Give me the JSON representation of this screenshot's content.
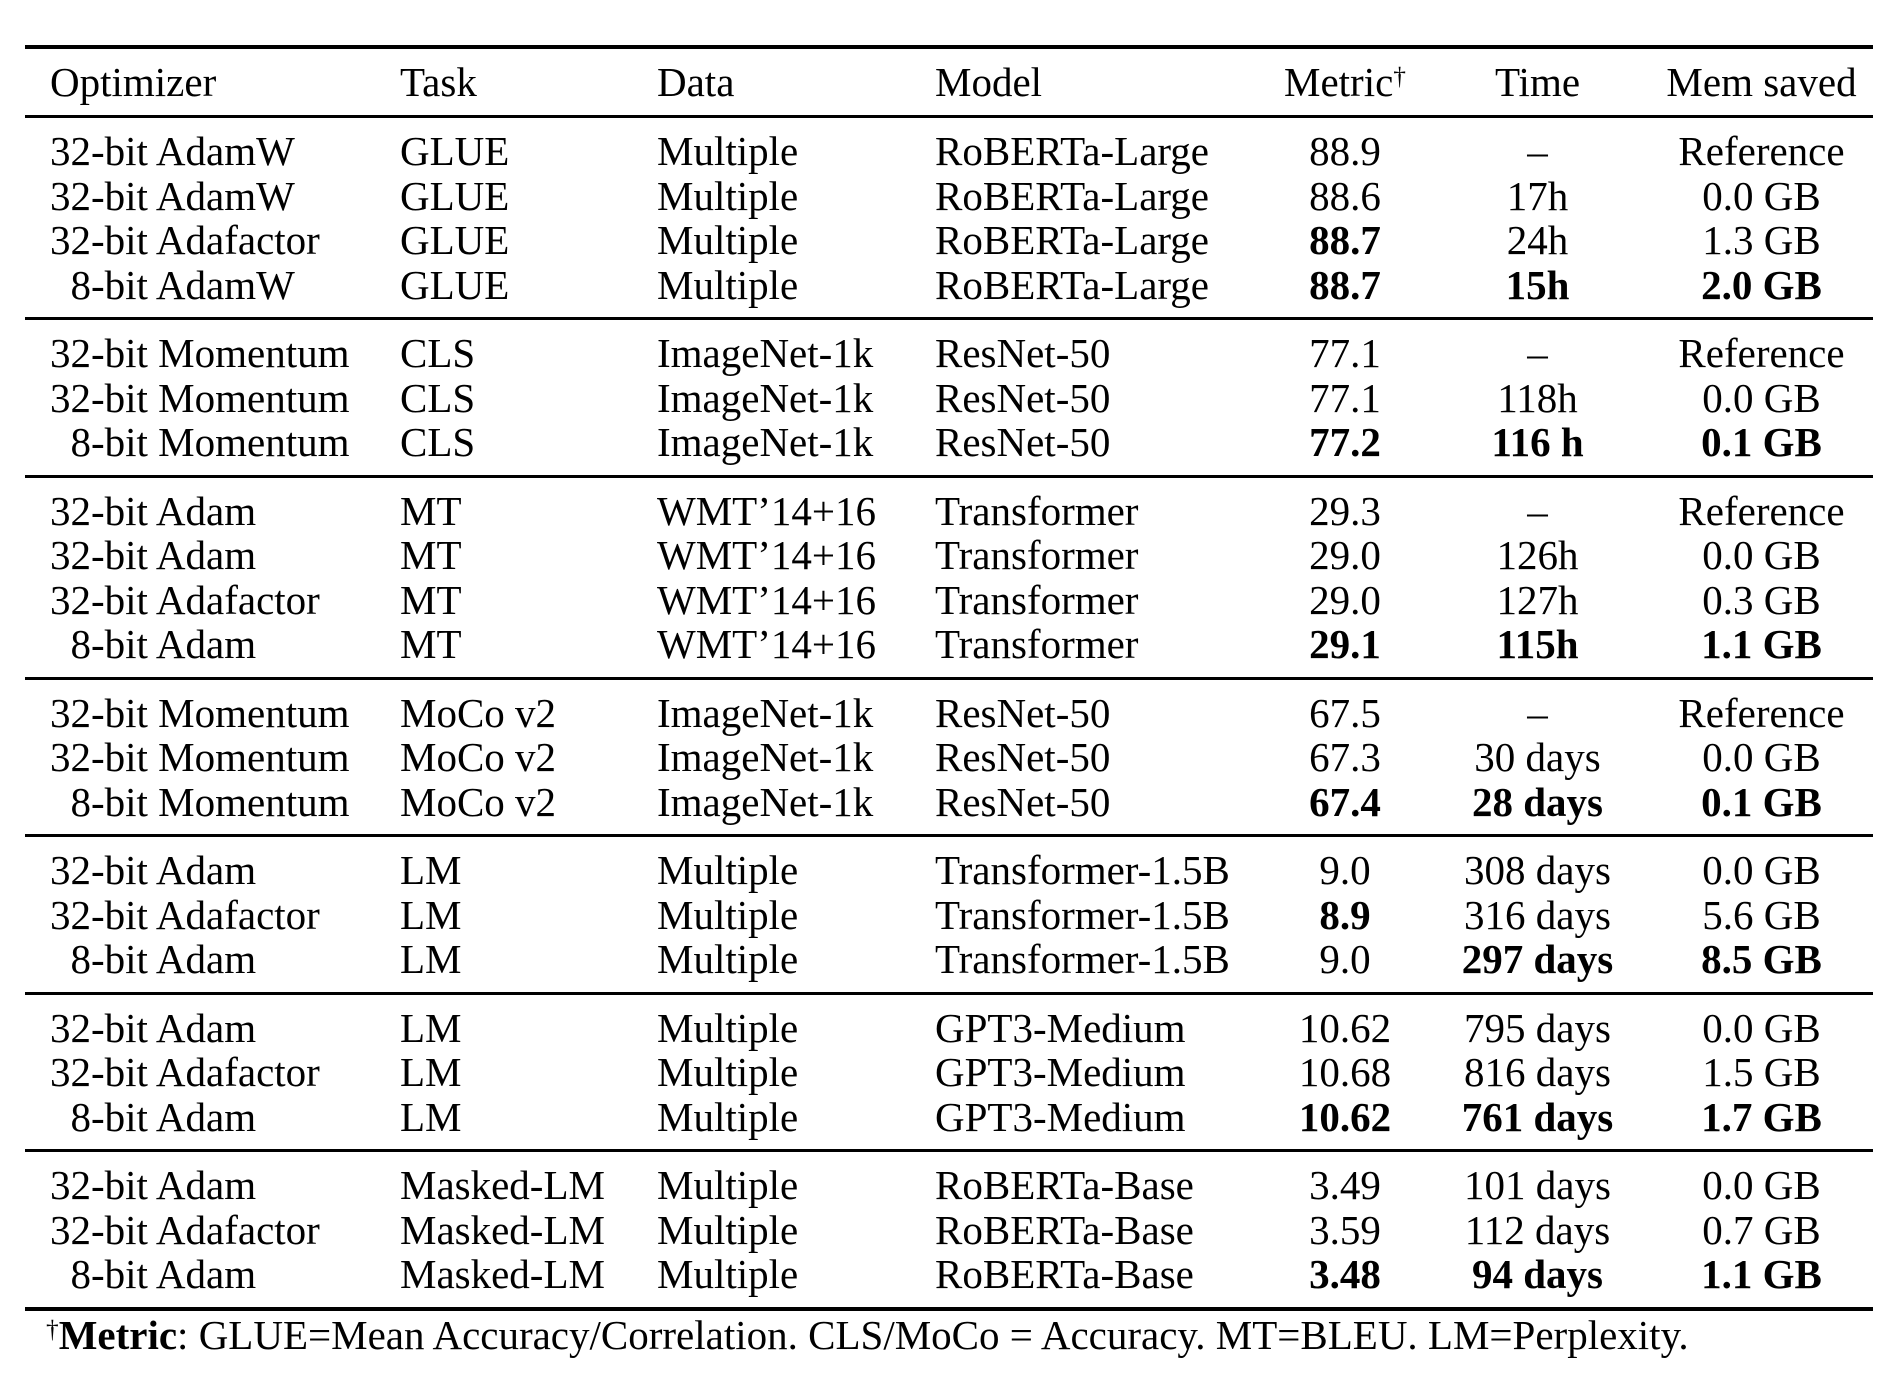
{
  "table": {
    "columns": [
      {
        "label": "Optimizer",
        "align": "left"
      },
      {
        "label": "Task",
        "align": "left"
      },
      {
        "label": "Data",
        "align": "left"
      },
      {
        "label": "Model",
        "align": "left"
      },
      {
        "label": "Metric",
        "sup": "†",
        "align": "center"
      },
      {
        "label": "Time",
        "align": "center"
      },
      {
        "label": "Mem saved",
        "align": "center"
      }
    ],
    "groups": [
      {
        "rows": [
          {
            "cells": [
              "32-bit AdamW",
              "GLUE",
              "Multiple",
              "RoBERTa-Large",
              "88.9",
              "–",
              "Reference"
            ],
            "bold": []
          },
          {
            "cells": [
              "32-bit AdamW",
              "GLUE",
              "Multiple",
              "RoBERTa-Large",
              "88.6",
              "17h",
              "0.0 GB"
            ],
            "bold": []
          },
          {
            "cells": [
              "32-bit Adafactor",
              "GLUE",
              "Multiple",
              "RoBERTa-Large",
              "88.7",
              "24h",
              "1.3 GB"
            ],
            "bold": [
              4
            ]
          },
          {
            "cells": [
              "8-bit AdamW",
              "GLUE",
              "Multiple",
              "RoBERTa-Large",
              "88.7",
              "15h",
              "2.0 GB"
            ],
            "bold": [
              4,
              5,
              6
            ]
          }
        ]
      },
      {
        "rows": [
          {
            "cells": [
              "32-bit Momentum",
              "CLS",
              "ImageNet-1k",
              "ResNet-50",
              "77.1",
              "–",
              "Reference"
            ],
            "bold": []
          },
          {
            "cells": [
              "32-bit Momentum",
              "CLS",
              "ImageNet-1k",
              "ResNet-50",
              "77.1",
              "118h",
              "0.0 GB"
            ],
            "bold": []
          },
          {
            "cells": [
              "8-bit Momentum",
              "CLS",
              "ImageNet-1k",
              "ResNet-50",
              "77.2",
              "116 h",
              "0.1 GB"
            ],
            "bold": [
              4,
              5,
              6
            ]
          }
        ]
      },
      {
        "rows": [
          {
            "cells": [
              "32-bit Adam",
              "MT",
              "WMT’14+16",
              "Transformer",
              "29.3",
              "–",
              "Reference"
            ],
            "bold": []
          },
          {
            "cells": [
              "32-bit Adam",
              "MT",
              "WMT’14+16",
              "Transformer",
              "29.0",
              "126h",
              "0.0 GB"
            ],
            "bold": []
          },
          {
            "cells": [
              "32-bit Adafactor",
              "MT",
              "WMT’14+16",
              "Transformer",
              "29.0",
              "127h",
              "0.3 GB"
            ],
            "bold": []
          },
          {
            "cells": [
              "8-bit Adam",
              "MT",
              "WMT’14+16",
              "Transformer",
              "29.1",
              "115h",
              "1.1 GB"
            ],
            "bold": [
              4,
              5,
              6
            ]
          }
        ]
      },
      {
        "rows": [
          {
            "cells": [
              "32-bit Momentum",
              "MoCo v2",
              "ImageNet-1k",
              "ResNet-50",
              "67.5",
              "–",
              "Reference"
            ],
            "bold": []
          },
          {
            "cells": [
              "32-bit Momentum",
              "MoCo v2",
              "ImageNet-1k",
              "ResNet-50",
              "67.3",
              "30 days",
              "0.0 GB"
            ],
            "bold": []
          },
          {
            "cells": [
              "8-bit Momentum",
              "MoCo v2",
              "ImageNet-1k",
              "ResNet-50",
              "67.4",
              "28 days",
              "0.1 GB"
            ],
            "bold": [
              4,
              5,
              6
            ]
          }
        ]
      },
      {
        "rows": [
          {
            "cells": [
              "32-bit Adam",
              "LM",
              "Multiple",
              "Transformer-1.5B",
              "9.0",
              "308 days",
              "0.0 GB"
            ],
            "bold": []
          },
          {
            "cells": [
              "32-bit Adafactor",
              "LM",
              "Multiple",
              "Transformer-1.5B",
              "8.9",
              "316 days",
              "5.6 GB"
            ],
            "bold": [
              4
            ]
          },
          {
            "cells": [
              "8-bit Adam",
              "LM",
              "Multiple",
              "Transformer-1.5B",
              "9.0",
              "297 days",
              "8.5 GB"
            ],
            "bold": [
              5,
              6
            ]
          }
        ]
      },
      {
        "rows": [
          {
            "cells": [
              "32-bit Adam",
              "LM",
              "Multiple",
              "GPT3-Medium",
              "10.62",
              "795 days",
              "0.0 GB"
            ],
            "bold": []
          },
          {
            "cells": [
              "32-bit Adafactor",
              "LM",
              "Multiple",
              "GPT3-Medium",
              "10.68",
              "816 days",
              "1.5 GB"
            ],
            "bold": []
          },
          {
            "cells": [
              "8-bit Adam",
              "LM",
              "Multiple",
              "GPT3-Medium",
              "10.62",
              "761 days",
              "1.7 GB"
            ],
            "bold": [
              4,
              5,
              6
            ]
          }
        ]
      },
      {
        "rows": [
          {
            "cells": [
              "32-bit Adam",
              "Masked-LM",
              "Multiple",
              "RoBERTa-Base",
              "3.49",
              "101 days",
              "0.0 GB"
            ],
            "bold": []
          },
          {
            "cells": [
              "32-bit Adafactor",
              "Masked-LM",
              "Multiple",
              "RoBERTa-Base",
              "3.59",
              "112 days",
              "0.7 GB"
            ],
            "bold": []
          },
          {
            "cells": [
              "8-bit Adam",
              "Masked-LM",
              "Multiple",
              "RoBERTa-Base",
              "3.48",
              "94 days",
              "1.1 GB"
            ],
            "bold": [
              4,
              5,
              6
            ]
          }
        ]
      }
    ]
  },
  "footnote": {
    "sup": "†",
    "bold_label": "Metric",
    "text": ": GLUE=Mean Accuracy/Correlation. CLS/MoCo = Accuracy. MT=BLEU. LM=Perplexity."
  }
}
